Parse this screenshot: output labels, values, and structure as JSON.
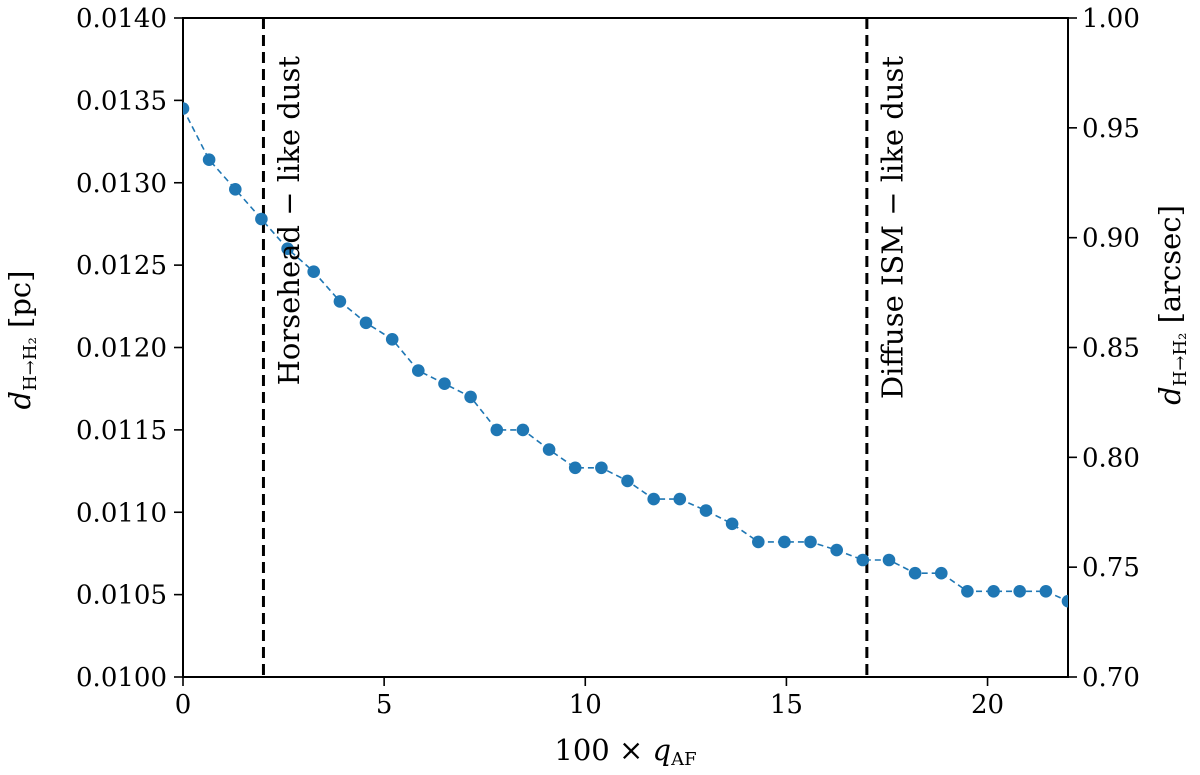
{
  "chart_data": {
    "type": "line",
    "xlabel": {
      "prefix": "100 × ",
      "var": "q",
      "sub": "AF"
    },
    "ylabel_left": {
      "var": "d",
      "sub": "H→H₂",
      "unit": " [pc]"
    },
    "ylabel_right": {
      "var": "d",
      "sub": "H→H₂",
      "unit": " [arcsec]"
    },
    "xlim": [
      0,
      22
    ],
    "ylim_left": [
      0.01,
      0.014
    ],
    "ylim_right": [
      0.7,
      1.0
    ],
    "x_ticks": [
      0,
      5,
      10,
      15,
      20
    ],
    "x_tick_labels": [
      "0",
      "5",
      "10",
      "15",
      "20"
    ],
    "y_left_ticks": [
      0.01,
      0.0105,
      0.011,
      0.0115,
      0.012,
      0.0125,
      0.013,
      0.0135,
      0.014
    ],
    "y_left_tick_labels": [
      "0.0100",
      "0.0105",
      "0.0110",
      "0.0115",
      "0.0120",
      "0.0125",
      "0.0130",
      "0.0135",
      "0.0140"
    ],
    "y_right_ticks": [
      0.7,
      0.75,
      0.8,
      0.85,
      0.9,
      0.95,
      1.0
    ],
    "y_right_tick_labels": [
      "0.70",
      "0.75",
      "0.80",
      "0.85",
      "0.90",
      "0.95",
      "1.00"
    ],
    "grid": false,
    "series": [
      {
        "color": "#1f77b4",
        "line_style": "dashed",
        "marker": "circle",
        "x": [
          0.0,
          0.65,
          1.3,
          1.95,
          2.6,
          3.25,
          3.9,
          4.55,
          5.2,
          5.85,
          6.5,
          7.15,
          7.8,
          8.45,
          9.1,
          9.75,
          10.4,
          11.05,
          11.7,
          12.35,
          13.0,
          13.65,
          14.3,
          14.95,
          15.6,
          16.25,
          16.9,
          17.55,
          18.2,
          18.85,
          19.5,
          20.15,
          20.8,
          21.45,
          22.0
        ],
        "y": [
          0.01345,
          0.01314,
          0.01296,
          0.01278,
          0.0126,
          0.01246,
          0.01228,
          0.01215,
          0.01205,
          0.01186,
          0.01178,
          0.0117,
          0.0115,
          0.0115,
          0.01138,
          0.01127,
          0.01127,
          0.01119,
          0.01108,
          0.01108,
          0.01101,
          0.01093,
          0.01082,
          0.01082,
          0.01082,
          0.01077,
          0.01071,
          0.01071,
          0.01063,
          0.01063,
          0.01052,
          0.01052,
          0.01052,
          0.01052,
          0.01046
        ]
      }
    ],
    "vlines": [
      {
        "x": 2,
        "label": "Horsehead − like dust"
      },
      {
        "x": 17,
        "label": "Diffuse ISM − like dust"
      }
    ]
  }
}
